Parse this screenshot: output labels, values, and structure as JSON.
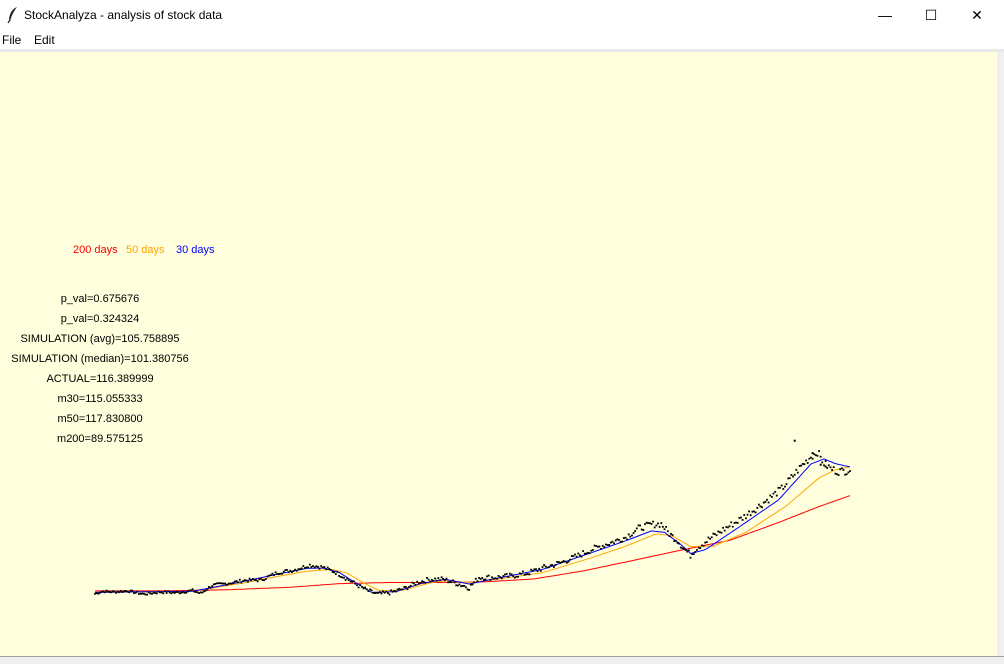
{
  "window": {
    "title": "StockAnalyza - analysis of stock data",
    "minimize_glyph": "—",
    "maximize_glyph": "☐",
    "close_glyph": "✕"
  },
  "menu": {
    "file": "File",
    "edit": "Edit"
  },
  "legend": {
    "ma200": {
      "label": "200 days",
      "color": "#ff0000"
    },
    "ma50": {
      "label": "50 days",
      "color": "#ffa500"
    },
    "ma30": {
      "label": "30 days",
      "color": "#0000ff"
    }
  },
  "stats": [
    "p_val=0.675676",
    "p_val=0.324324",
    "SIMULATION (avg)=105.758895",
    "SIMULATION (median)=101.380756",
    "ACTUAL=116.389999",
    "m30=115.055333",
    "m50=117.830800",
    "m200=89.575125"
  ],
  "colors": {
    "canvas": "#fffedd",
    "price": "#000000"
  },
  "chart_data": {
    "type": "line",
    "price_keypoints": [
      [
        0,
        35.5
      ],
      [
        5,
        36.2
      ],
      [
        12,
        36.0
      ],
      [
        20,
        36.3
      ],
      [
        30,
        35.4
      ],
      [
        40,
        36.0
      ],
      [
        50,
        35.8
      ],
      [
        60,
        36.4
      ],
      [
        65,
        35.6
      ],
      [
        72,
        37.8
      ],
      [
        82,
        38.4
      ],
      [
        92,
        39.2
      ],
      [
        102,
        39.3
      ],
      [
        112,
        41.3
      ],
      [
        122,
        42.0
      ],
      [
        132,
        43.4
      ],
      [
        140,
        42.8
      ],
      [
        148,
        41.4
      ],
      [
        155,
        39.6
      ],
      [
        162,
        37.7
      ],
      [
        168,
        36.3
      ],
      [
        174,
        35.4
      ],
      [
        182,
        35.9
      ],
      [
        190,
        36.9
      ],
      [
        198,
        38.6
      ],
      [
        206,
        39.5
      ],
      [
        214,
        39.5
      ],
      [
        222,
        38.4
      ],
      [
        230,
        37.2
      ],
      [
        236,
        40.0
      ],
      [
        246,
        40.0
      ],
      [
        256,
        40.4
      ],
      [
        266,
        41.2
      ],
      [
        276,
        42.7
      ],
      [
        286,
        44.0
      ],
      [
        296,
        45.8
      ],
      [
        306,
        47.8
      ],
      [
        316,
        49.4
      ],
      [
        326,
        51.0
      ],
      [
        334,
        53.5
      ],
      [
        342,
        54.6
      ],
      [
        348,
        54.7
      ],
      [
        353,
        52.0
      ],
      [
        358,
        50.2
      ],
      [
        362,
        47.9
      ],
      [
        366,
        46.2
      ],
      [
        370,
        48.2
      ],
      [
        378,
        50.7
      ],
      [
        386,
        53.1
      ],
      [
        396,
        55.8
      ],
      [
        406,
        58.9
      ],
      [
        414,
        61.6
      ],
      [
        422,
        64.4
      ],
      [
        428,
        67.4
      ],
      [
        434,
        70.6
      ],
      [
        440,
        73.2
      ],
      [
        444,
        74.5
      ],
      [
        448,
        71.4
      ],
      [
        452,
        70.0
      ],
      [
        456,
        69.2
      ],
      [
        460,
        69.2
      ],
      [
        464,
        69.7
      ]
    ],
    "ma30_keypoints": [
      [
        0,
        35.9
      ],
      [
        60,
        36.2
      ],
      [
        90,
        38.8
      ],
      [
        110,
        40.7
      ],
      [
        130,
        42.5
      ],
      [
        140,
        42.6
      ],
      [
        150,
        41.4
      ],
      [
        160,
        38.6
      ],
      [
        170,
        35.9
      ],
      [
        185,
        36.1
      ],
      [
        200,
        38.3
      ],
      [
        215,
        39.5
      ],
      [
        230,
        38.2
      ],
      [
        245,
        39.6
      ],
      [
        275,
        42.2
      ],
      [
        305,
        46.8
      ],
      [
        325,
        49.9
      ],
      [
        342,
        52.8
      ],
      [
        350,
        52.4
      ],
      [
        360,
        49.1
      ],
      [
        366,
        46.6
      ],
      [
        375,
        47.6
      ],
      [
        395,
        53.6
      ],
      [
        420,
        61.3
      ],
      [
        440,
        71.2
      ],
      [
        448,
        72.6
      ],
      [
        455,
        71.3
      ],
      [
        464,
        70.4
      ]
    ],
    "ma50_keypoints": [
      [
        0,
        35.9
      ],
      [
        60,
        36.2
      ],
      [
        90,
        38.4
      ],
      [
        110,
        40.1
      ],
      [
        130,
        41.7
      ],
      [
        145,
        42.2
      ],
      [
        155,
        41.2
      ],
      [
        165,
        38.5
      ],
      [
        175,
        36.3
      ],
      [
        190,
        36.6
      ],
      [
        205,
        38.4
      ],
      [
        215,
        39.2
      ],
      [
        230,
        38.6
      ],
      [
        245,
        39.4
      ],
      [
        275,
        41.3
      ],
      [
        305,
        45.4
      ],
      [
        325,
        48.4
      ],
      [
        345,
        52.0
      ],
      [
        355,
        51.4
      ],
      [
        366,
        48.5
      ],
      [
        380,
        48.6
      ],
      [
        400,
        52.4
      ],
      [
        425,
        59.7
      ],
      [
        445,
        67.4
      ],
      [
        455,
        69.6
      ],
      [
        464,
        70.4
      ]
    ],
    "ma200_keypoints": [
      [
        0,
        36.3
      ],
      [
        40,
        36.3
      ],
      [
        80,
        36.6
      ],
      [
        120,
        37.3
      ],
      [
        150,
        38.3
      ],
      [
        180,
        38.6
      ],
      [
        210,
        38.6
      ],
      [
        240,
        38.8
      ],
      [
        270,
        39.6
      ],
      [
        300,
        41.8
      ],
      [
        330,
        44.6
      ],
      [
        360,
        47.5
      ],
      [
        390,
        50.2
      ],
      [
        420,
        55.1
      ],
      [
        445,
        59.5
      ],
      [
        464,
        62.5
      ]
    ],
    "spikes": [
      [
        430,
        77.6
      ],
      [
        441,
        74.2
      ],
      [
        446,
        71.0
      ],
      [
        449,
        70.5
      ]
    ],
    "xlim": [
      0,
      464
    ],
    "ylim": [
      25,
      80
    ]
  }
}
